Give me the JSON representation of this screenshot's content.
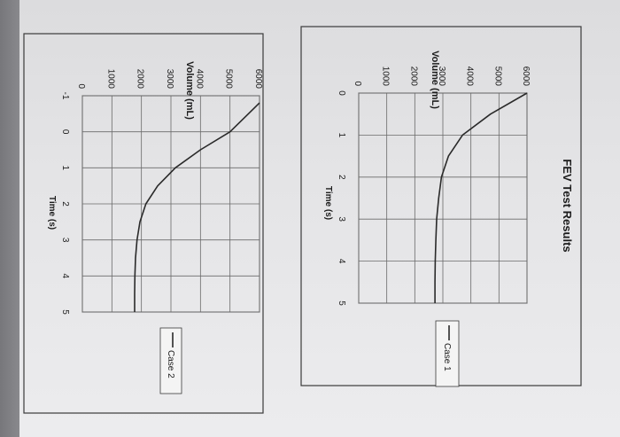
{
  "chart_data": [
    {
      "type": "line",
      "title": "FEV Test Results",
      "xlabel": "Time (s)",
      "ylabel": "Volume (mL)",
      "x_ticks": [
        "0",
        "1",
        "2",
        "3",
        "4",
        "5"
      ],
      "y_ticks": [
        "0",
        "1000",
        "2000",
        "3000",
        "4000",
        "5000",
        "6000"
      ],
      "xlim": [
        0,
        5
      ],
      "ylim": [
        0,
        6000
      ],
      "grid": true,
      "legend_position": "right",
      "series": [
        {
          "name": "Case 1",
          "color": "#2a2a2a",
          "x": [
            0,
            0.5,
            1.0,
            1.5,
            2.0,
            2.5,
            3.0,
            3.5,
            4.0,
            4.5,
            5.0
          ],
          "y": [
            6000,
            4700,
            3700,
            3200,
            2950,
            2850,
            2780,
            2750,
            2730,
            2720,
            2720
          ]
        }
      ]
    },
    {
      "type": "line",
      "title": "",
      "xlabel": "Time (s)",
      "ylabel": "Volume (mL)",
      "x_ticks": [
        "-1",
        "0",
        "1",
        "2",
        "3",
        "4",
        "5"
      ],
      "y_ticks": [
        "0",
        "1000",
        "2000",
        "3000",
        "4000",
        "5000",
        "6000"
      ],
      "xlim": [
        -1,
        5
      ],
      "ylim": [
        0,
        6000
      ],
      "grid": true,
      "legend_position": "right",
      "series": [
        {
          "name": "Case 2",
          "color": "#2a2a2a",
          "x": [
            -0.8,
            0.0,
            0.5,
            1.0,
            1.5,
            2.0,
            2.5,
            3.0,
            3.5,
            4.0,
            4.5,
            5.0
          ],
          "y": [
            6000,
            5000,
            4000,
            3150,
            2550,
            2150,
            1950,
            1850,
            1800,
            1780,
            1770,
            1770
          ]
        }
      ]
    }
  ]
}
